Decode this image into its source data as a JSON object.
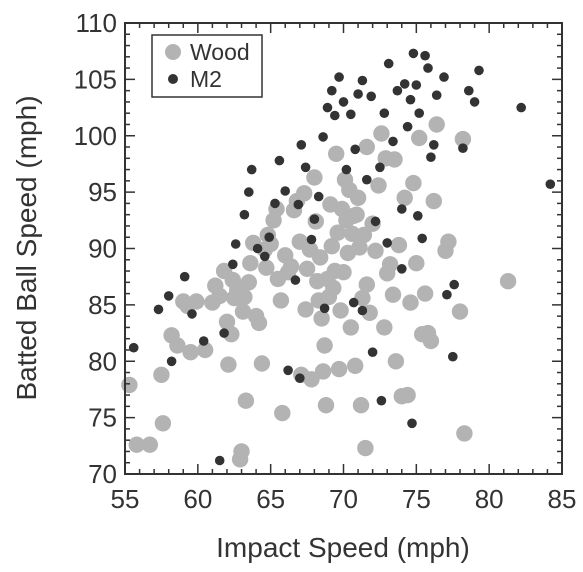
{
  "chart_data": {
    "type": "scatter",
    "xlabel": "Impact Speed (mph)",
    "ylabel": "Batted Ball Speed (mph)",
    "xlim": [
      55,
      85
    ],
    "ylim": [
      70,
      110
    ],
    "xticks": [
      55,
      60,
      65,
      70,
      75,
      80,
      85
    ],
    "yticks": [
      70,
      75,
      80,
      85,
      90,
      95,
      100,
      105,
      110
    ],
    "grid": false,
    "legend_position": "top-left",
    "series": [
      {
        "name": "Wood",
        "color": "#b3b3b3",
        "marker": "large-circle",
        "points": [
          [
            55.3,
            77.9
          ],
          [
            55.8,
            72.6
          ],
          [
            56.7,
            72.6
          ],
          [
            57.5,
            78.8
          ],
          [
            57.6,
            74.5
          ],
          [
            58.2,
            82.3
          ],
          [
            58.6,
            81.4
          ],
          [
            59.0,
            85.3
          ],
          [
            59.3,
            84.9
          ],
          [
            59.5,
            80.8
          ],
          [
            59.9,
            85.3
          ],
          [
            60.5,
            81.0
          ],
          [
            61.0,
            85.2
          ],
          [
            61.2,
            86.7
          ],
          [
            61.5,
            85.8
          ],
          [
            61.8,
            88.0
          ],
          [
            62.0,
            83.5
          ],
          [
            62.1,
            79.7
          ],
          [
            62.3,
            82.4
          ],
          [
            62.4,
            87.2
          ],
          [
            62.5,
            85.6
          ],
          [
            62.7,
            86.3
          ],
          [
            62.9,
            71.3
          ],
          [
            63.0,
            72.0
          ],
          [
            63.1,
            84.4
          ],
          [
            63.2,
            85.7
          ],
          [
            63.3,
            76.5
          ],
          [
            63.5,
            87.0
          ],
          [
            63.6,
            88.7
          ],
          [
            63.8,
            90.5
          ],
          [
            64.0,
            84.0
          ],
          [
            64.2,
            83.4
          ],
          [
            64.4,
            79.8
          ],
          [
            64.6,
            89.9
          ],
          [
            64.7,
            88.3
          ],
          [
            64.8,
            91.2
          ],
          [
            65.0,
            90.4
          ],
          [
            65.2,
            92.5
          ],
          [
            65.4,
            93.5
          ],
          [
            65.5,
            87.3
          ],
          [
            65.7,
            85.4
          ],
          [
            65.8,
            75.4
          ],
          [
            66.0,
            89.4
          ],
          [
            66.2,
            87.9
          ],
          [
            66.4,
            88.4
          ],
          [
            66.6,
            93.4
          ],
          [
            66.8,
            94.2
          ],
          [
            67.0,
            90.6
          ],
          [
            67.1,
            78.8
          ],
          [
            67.3,
            94.9
          ],
          [
            67.4,
            84.6
          ],
          [
            67.5,
            88.2
          ],
          [
            67.7,
            89.9
          ],
          [
            67.8,
            78.4
          ],
          [
            68.0,
            96.3
          ],
          [
            68.1,
            92.4
          ],
          [
            68.2,
            87.1
          ],
          [
            68.3,
            85.4
          ],
          [
            68.4,
            89.2
          ],
          [
            68.5,
            83.8
          ],
          [
            68.6,
            79.1
          ],
          [
            68.7,
            81.4
          ],
          [
            68.8,
            76.1
          ],
          [
            68.9,
            87.3
          ],
          [
            69.0,
            85.7
          ],
          [
            69.1,
            93.9
          ],
          [
            69.2,
            90.2
          ],
          [
            69.3,
            86.5
          ],
          [
            69.4,
            88.0
          ],
          [
            69.5,
            98.4
          ],
          [
            69.6,
            91.4
          ],
          [
            69.7,
            79.3
          ],
          [
            69.8,
            84.5
          ],
          [
            69.9,
            93.5
          ],
          [
            70.0,
            87.9
          ],
          [
            70.1,
            96.1
          ],
          [
            70.2,
            92.5
          ],
          [
            70.3,
            89.6
          ],
          [
            70.4,
            95.2
          ],
          [
            70.5,
            83.0
          ],
          [
            70.6,
            91.3
          ],
          [
            70.7,
            92.9
          ],
          [
            70.8,
            79.6
          ],
          [
            70.9,
            93.0
          ],
          [
            71.0,
            94.5
          ],
          [
            71.1,
            90.1
          ],
          [
            71.2,
            76.1
          ],
          [
            71.3,
            85.6
          ],
          [
            71.4,
            91.2
          ],
          [
            71.5,
            72.3
          ],
          [
            71.6,
            86.8
          ],
          [
            71.8,
            84.3
          ],
          [
            72.0,
            92.2
          ],
          [
            72.2,
            89.8
          ],
          [
            72.4,
            95.6
          ],
          [
            72.6,
            100.2
          ],
          [
            72.8,
            83.0
          ],
          [
            73.0,
            87.8
          ],
          [
            73.2,
            88.6
          ],
          [
            73.4,
            85.9
          ],
          [
            73.5,
            97.9
          ],
          [
            73.6,
            80.0
          ],
          [
            73.8,
            90.3
          ],
          [
            74.0,
            76.9
          ],
          [
            74.2,
            94.5
          ],
          [
            74.4,
            77.0
          ],
          [
            74.6,
            85.2
          ],
          [
            74.8,
            95.8
          ],
          [
            75.0,
            88.7
          ],
          [
            75.2,
            99.8
          ],
          [
            75.4,
            82.4
          ],
          [
            75.6,
            86.0
          ],
          [
            75.8,
            82.5
          ],
          [
            76.0,
            81.8
          ],
          [
            76.2,
            94.2
          ],
          [
            76.4,
            101.0
          ],
          [
            77.0,
            89.8
          ],
          [
            77.2,
            90.6
          ],
          [
            78.0,
            84.4
          ],
          [
            78.2,
            99.7
          ],
          [
            78.3,
            73.6
          ],
          [
            81.3,
            87.1
          ],
          [
            71.6,
            99.0
          ],
          [
            72.9,
            98.0
          ]
        ]
      },
      {
        "name": "M2",
        "color": "#333333",
        "marker": "small-dot",
        "points": [
          [
            55.6,
            81.2
          ],
          [
            57.3,
            84.6
          ],
          [
            58.0,
            85.8
          ],
          [
            58.2,
            80.0
          ],
          [
            59.1,
            87.5
          ],
          [
            59.6,
            84.2
          ],
          [
            60.4,
            81.8
          ],
          [
            61.5,
            71.2
          ],
          [
            61.8,
            82.5
          ],
          [
            62.4,
            88.6
          ],
          [
            62.6,
            90.4
          ],
          [
            63.2,
            93.0
          ],
          [
            63.5,
            95.0
          ],
          [
            63.7,
            97.0
          ],
          [
            64.1,
            90.0
          ],
          [
            64.6,
            89.3
          ],
          [
            64.9,
            91.0
          ],
          [
            65.3,
            94.0
          ],
          [
            65.6,
            97.8
          ],
          [
            66.0,
            95.1
          ],
          [
            66.2,
            79.2
          ],
          [
            66.7,
            87.2
          ],
          [
            66.9,
            93.9
          ],
          [
            67.1,
            99.2
          ],
          [
            67.4,
            97.2
          ],
          [
            67.8,
            90.8
          ],
          [
            68.0,
            92.6
          ],
          [
            68.3,
            94.6
          ],
          [
            68.6,
            99.9
          ],
          [
            68.9,
            102.5
          ],
          [
            69.2,
            104.0
          ],
          [
            69.4,
            101.8
          ],
          [
            69.7,
            105.2
          ],
          [
            70.0,
            103.0
          ],
          [
            70.2,
            97.0
          ],
          [
            70.5,
            101.9
          ],
          [
            70.8,
            98.8
          ],
          [
            71.0,
            103.7
          ],
          [
            71.3,
            104.9
          ],
          [
            71.6,
            96.1
          ],
          [
            71.9,
            103.5
          ],
          [
            72.2,
            92.4
          ],
          [
            72.5,
            97.2
          ],
          [
            72.8,
            102.0
          ],
          [
            73.1,
            106.4
          ],
          [
            73.4,
            99.5
          ],
          [
            73.7,
            104.0
          ],
          [
            74.0,
            93.5
          ],
          [
            74.2,
            104.6
          ],
          [
            74.4,
            100.8
          ],
          [
            74.6,
            103.2
          ],
          [
            74.8,
            107.3
          ],
          [
            75.0,
            104.5
          ],
          [
            75.2,
            102.0
          ],
          [
            75.4,
            90.9
          ],
          [
            75.6,
            107.1
          ],
          [
            75.8,
            106.0
          ],
          [
            76.0,
            98.1
          ],
          [
            76.2,
            99.2
          ],
          [
            76.4,
            103.6
          ],
          [
            76.9,
            105.2
          ],
          [
            77.1,
            85.9
          ],
          [
            77.5,
            80.4
          ],
          [
            77.6,
            86.8
          ],
          [
            78.2,
            98.9
          ],
          [
            78.6,
            104.0
          ],
          [
            79.0,
            103.0
          ],
          [
            79.3,
            105.8
          ],
          [
            82.2,
            102.5
          ],
          [
            84.2,
            95.7
          ],
          [
            74.7,
            74.5
          ],
          [
            72.6,
            76.5
          ],
          [
            72.0,
            80.8
          ],
          [
            70.7,
            85.2
          ],
          [
            68.7,
            84.7
          ],
          [
            67.0,
            78.5
          ],
          [
            74.0,
            88.2
          ],
          [
            73.0,
            90.5
          ],
          [
            71.3,
            84.5
          ],
          [
            75.1,
            92.9
          ]
        ]
      }
    ]
  }
}
